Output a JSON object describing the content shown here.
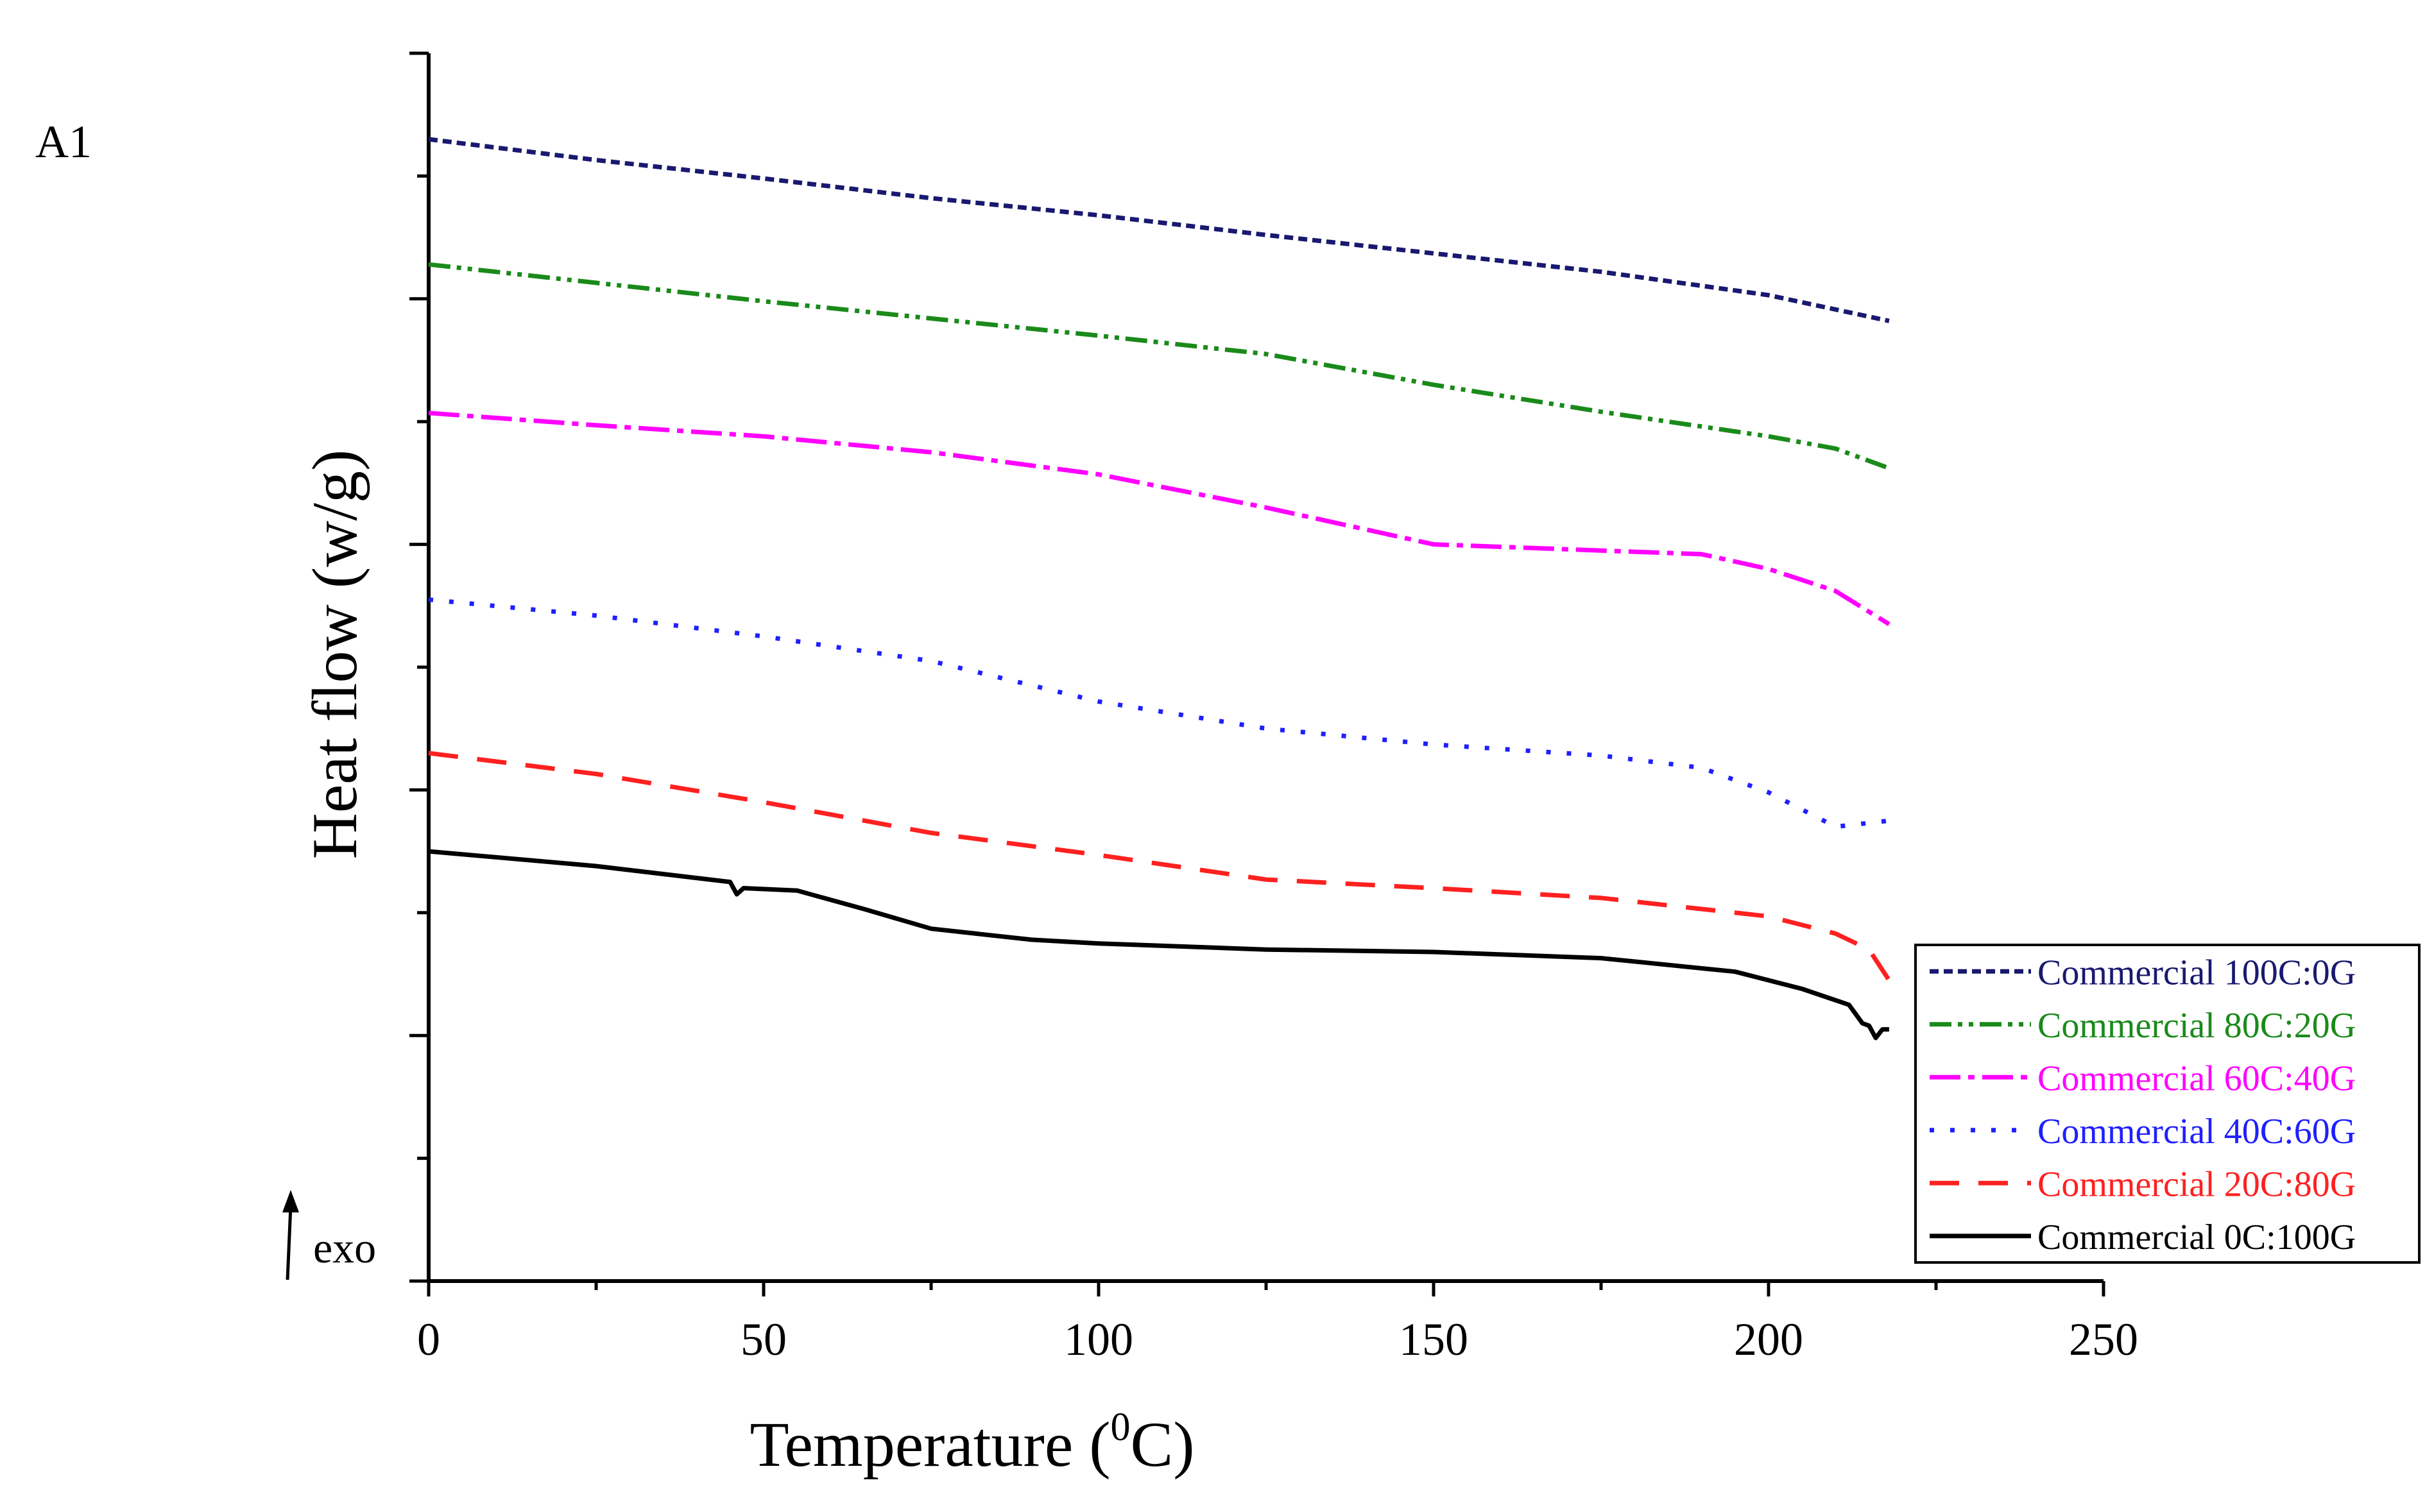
{
  "chart_data": {
    "type": "line",
    "panel_label": "A1",
    "title": "",
    "xlabel": "Temperature (",
    "xlabel_sup": "0",
    "xlabel_suffix": "C)",
    "ylabel": "Heat flow (w/g)",
    "exo_label": "exo",
    "xlim": [
      0,
      250
    ],
    "ylim": [
      0,
      10
    ],
    "x_ticks": [
      0,
      50,
      100,
      150,
      200,
      250
    ],
    "x_tick_labels": [
      "0",
      "50",
      "100",
      "150",
      "200",
      "250"
    ],
    "y_ticks_visible_labels": false,
    "grid": false,
    "legend_position": "bottom-right",
    "series": [
      {
        "name": "Commercial 100C:0G",
        "color": "#191970",
        "dash": "dash",
        "x": [
          0,
          25,
          50,
          75,
          100,
          125,
          150,
          175,
          200,
          218
        ],
        "y": [
          9.3,
          9.13,
          8.98,
          8.82,
          8.68,
          8.52,
          8.37,
          8.22,
          8.03,
          7.82
        ]
      },
      {
        "name": "Commercial 80C:20G",
        "color": "#1a8a1a",
        "dash": "dashdotdot",
        "x": [
          0,
          25,
          50,
          75,
          100,
          125,
          150,
          175,
          200,
          210,
          218
        ],
        "y": [
          8.28,
          8.13,
          7.98,
          7.84,
          7.7,
          7.55,
          7.3,
          7.08,
          6.88,
          6.78,
          6.62
        ]
      },
      {
        "name": "Commercial 60C:40G",
        "color": "#ff00ff",
        "dash": "dashdot",
        "x": [
          0,
          25,
          50,
          75,
          100,
          125,
          150,
          175,
          190,
          200,
          210,
          218
        ],
        "y": [
          7.07,
          6.97,
          6.88,
          6.75,
          6.57,
          6.3,
          6.0,
          5.95,
          5.92,
          5.8,
          5.62,
          5.35
        ]
      },
      {
        "name": "Commercial 40C:60G",
        "color": "#1f1fff",
        "dash": "dot",
        "x": [
          0,
          25,
          50,
          75,
          100,
          125,
          150,
          175,
          190,
          200,
          210,
          218
        ],
        "y": [
          5.55,
          5.42,
          5.25,
          5.05,
          4.72,
          4.5,
          4.37,
          4.28,
          4.18,
          3.98,
          3.7,
          3.75
        ]
      },
      {
        "name": "Commercial 20C:80G",
        "color": "#ff2020",
        "dash": "longdash",
        "x": [
          0,
          25,
          50,
          75,
          100,
          125,
          150,
          175,
          200,
          210,
          215,
          218
        ],
        "y": [
          4.3,
          4.13,
          3.9,
          3.65,
          3.47,
          3.27,
          3.2,
          3.12,
          2.97,
          2.83,
          2.7,
          2.45
        ]
      },
      {
        "name": "Commercial 0C:100G",
        "color": "#000000",
        "dash": "solid",
        "x": [
          0,
          25,
          45,
          46,
          47,
          55,
          65,
          75,
          90,
          100,
          125,
          150,
          175,
          195,
          205,
          212,
          214,
          215,
          216,
          217,
          218
        ],
        "y": [
          3.5,
          3.38,
          3.25,
          3.15,
          3.2,
          3.18,
          3.03,
          2.87,
          2.78,
          2.75,
          2.7,
          2.68,
          2.63,
          2.52,
          2.38,
          2.25,
          2.1,
          2.08,
          1.98,
          2.05,
          2.05
        ]
      }
    ]
  }
}
